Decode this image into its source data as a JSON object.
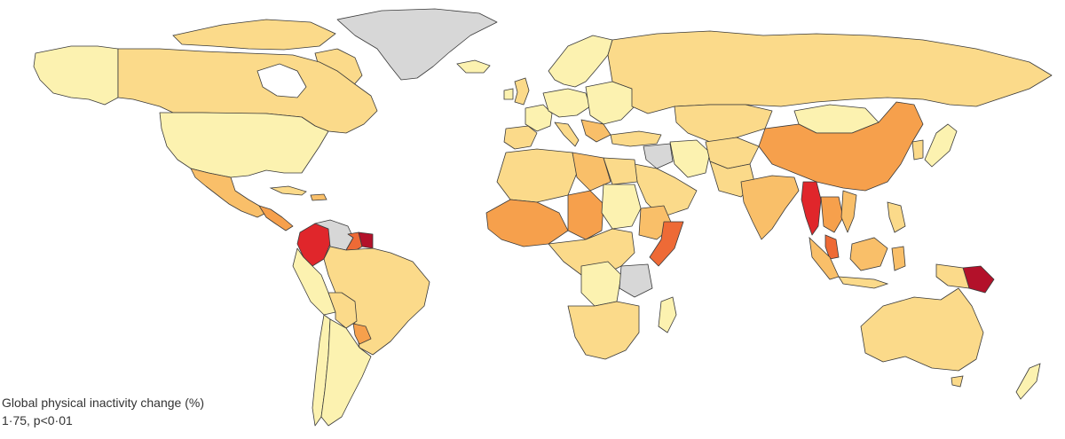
{
  "caption": {
    "title": "Global physical inactivity change (%)",
    "stat": "1·75, p<0·01"
  },
  "palette": {
    "grey_no_data": "#d7d7d7",
    "pale_yellow": "#fcf2b0",
    "light_orange": "#fbda8a",
    "orange": "#f9bf69",
    "dark_orange": "#f6a04c",
    "red_orange": "#ee6a36",
    "red": "#e0262b",
    "dark_red": "#b3112a"
  }
}
